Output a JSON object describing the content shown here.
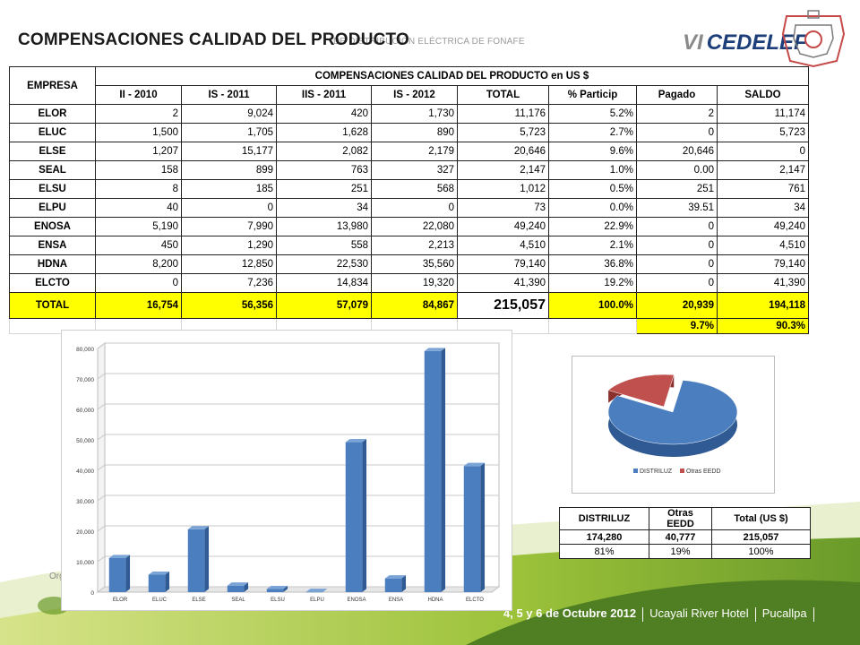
{
  "slide": {
    "title": "COMPENSACIONES CALIDAD DEL PRODUCTO",
    "header_tag": "DE DISTRIBUCIÓN ELÉCTRICA DE FONAFE",
    "logo_roman": "VI",
    "logo_text": "CEDELEF",
    "footer": {
      "date": "4, 5 y 6 de Octubre 2012",
      "venue": "Ucayali River Hotel",
      "city": "Pucallpa"
    },
    "org_fragment": "Org"
  },
  "table": {
    "empresa_header": "EMPRESA",
    "group_header": "COMPENSACIONES CALIDAD DEL PRODUCTO en US $",
    "columns": [
      "II - 2010",
      "IS - 2011",
      "IIS - 2011",
      "IS - 2012",
      "TOTAL",
      "% Particip",
      "Pagado",
      "SALDO"
    ],
    "rows": [
      {
        "empresa": "ELOR",
        "cells": [
          "2",
          "9,024",
          "420",
          "1,730",
          "11,176",
          "5.2%",
          "2",
          "11,174"
        ]
      },
      {
        "empresa": "ELUC",
        "cells": [
          "1,500",
          "1,705",
          "1,628",
          "890",
          "5,723",
          "2.7%",
          "0",
          "5,723"
        ]
      },
      {
        "empresa": "ELSE",
        "cells": [
          "1,207",
          "15,177",
          "2,082",
          "2,179",
          "20,646",
          "9.6%",
          "20,646",
          "0"
        ]
      },
      {
        "empresa": "SEAL",
        "cells": [
          "158",
          "899",
          "763",
          "327",
          "2,147",
          "1.0%",
          "0.00",
          "2,147"
        ]
      },
      {
        "empresa": "ELSU",
        "cells": [
          "8",
          "185",
          "251",
          "568",
          "1,012",
          "0.5%",
          "251",
          "761"
        ]
      },
      {
        "empresa": "ELPU",
        "cells": [
          "40",
          "0",
          "34",
          "0",
          "73",
          "0.0%",
          "39.51",
          "34"
        ]
      },
      {
        "empresa": "ENOSA",
        "cells": [
          "5,190",
          "7,990",
          "13,980",
          "22,080",
          "49,240",
          "22.9%",
          "0",
          "49,240"
        ]
      },
      {
        "empresa": "ENSA",
        "cells": [
          "450",
          "1,290",
          "558",
          "2,213",
          "4,510",
          "2.1%",
          "0",
          "4,510"
        ]
      },
      {
        "empresa": "HDNA",
        "cells": [
          "8,200",
          "12,850",
          "22,530",
          "35,560",
          "79,140",
          "36.8%",
          "0",
          "79,140"
        ]
      },
      {
        "empresa": "ELCTO",
        "cells": [
          "0",
          "7,236",
          "14,834",
          "19,320",
          "41,390",
          "19.2%",
          "0",
          "41,390"
        ]
      }
    ],
    "total": {
      "empresa": "TOTAL",
      "cells": [
        "16,754",
        "56,356",
        "57,079",
        "84,867",
        "215,057",
        "100.0%",
        "20,939",
        "194,118"
      ]
    },
    "pct_row": {
      "pagado": "9.7%",
      "saldo": "90.3%"
    }
  },
  "summary_table": {
    "headers": [
      "DISTRILUZ",
      "Otras EEDD",
      "Total (US $)"
    ],
    "values": [
      "174,280",
      "40,777",
      "215,057"
    ],
    "percents": [
      "81%",
      "19%",
      "100%"
    ]
  },
  "chart_data": [
    {
      "type": "bar",
      "categories": [
        "ELOR",
        "ELUC",
        "ELSE",
        "SEAL",
        "ELSU",
        "ELPU",
        "ENOSA",
        "ENSA",
        "HDNA",
        "ELCTO"
      ],
      "values": [
        11176,
        5723,
        20646,
        2147,
        1012,
        73,
        49240,
        4510,
        79140,
        41390
      ],
      "y_ticks": [
        "0",
        "10,000",
        "20,000",
        "30,000",
        "40,000",
        "50,000",
        "60,000",
        "70,000",
        "80,000"
      ],
      "ylim": [
        0,
        80000
      ],
      "color": "#4a7ebf",
      "grid": true,
      "style": "3d"
    },
    {
      "type": "pie",
      "labels": [
        "DISTRILUZ",
        "Otras EEDD"
      ],
      "values": [
        174280,
        40777
      ],
      "colors": [
        "#4a7ebf",
        "#c0504d"
      ],
      "legend": "bottom",
      "style": "3d"
    }
  ]
}
